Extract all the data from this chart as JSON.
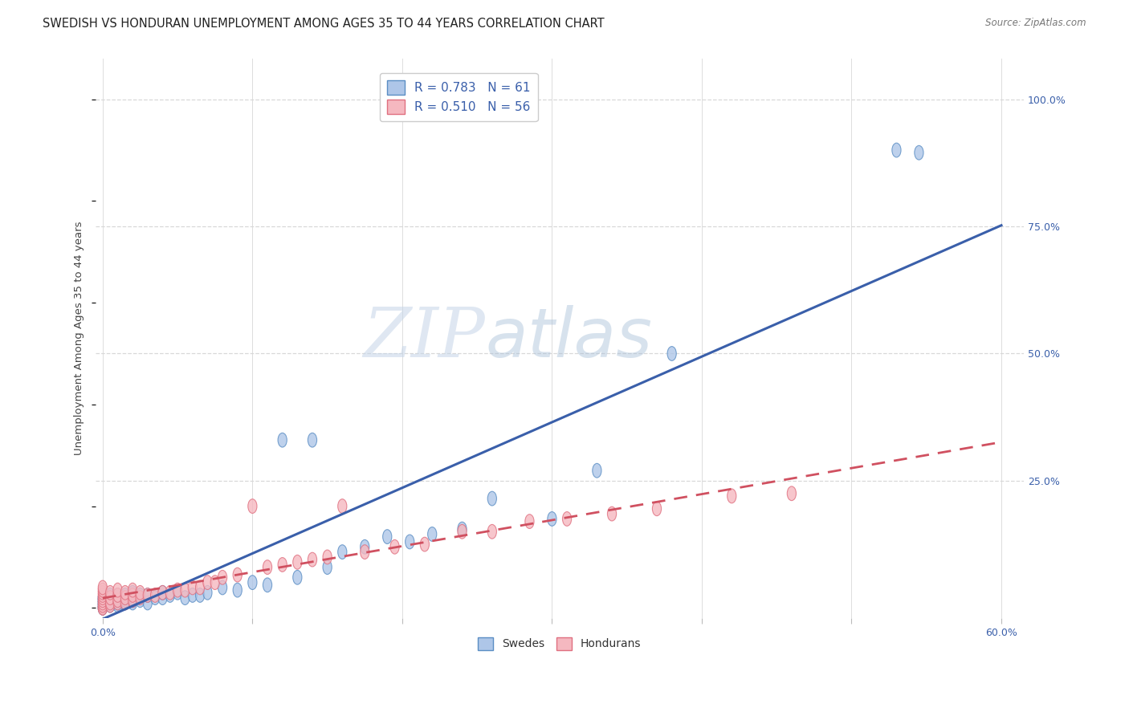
{
  "title": "SWEDISH VS HONDURAN UNEMPLOYMENT AMONG AGES 35 TO 44 YEARS CORRELATION CHART",
  "source": "Source: ZipAtlas.com",
  "ylabel": "Unemployment Among Ages 35 to 44 years",
  "xlim": [
    -0.005,
    0.615
  ],
  "ylim": [
    -0.02,
    1.08
  ],
  "xticks": [
    0.0,
    0.1,
    0.2,
    0.3,
    0.4,
    0.5,
    0.6
  ],
  "yticks_right": [
    0.25,
    0.5,
    0.75,
    1.0
  ],
  "yticklabels_right": [
    "25.0%",
    "50.0%",
    "75.0%",
    "100.0%"
  ],
  "swedes_R": 0.783,
  "swedes_N": 61,
  "hondurans_R": 0.51,
  "hondurans_N": 56,
  "blue_fill": "#aec6e8",
  "blue_edge": "#5b8ec4",
  "pink_fill": "#f5b8c0",
  "pink_edge": "#e07080",
  "blue_line_color": "#3a5faa",
  "pink_line_color": "#d05060",
  "swedes_x": [
    0.0,
    0.0,
    0.0,
    0.0,
    0.0,
    0.0,
    0.0,
    0.0,
    0.0,
    0.0,
    0.005,
    0.005,
    0.005,
    0.005,
    0.005,
    0.01,
    0.01,
    0.01,
    0.01,
    0.01,
    0.015,
    0.015,
    0.015,
    0.015,
    0.02,
    0.02,
    0.02,
    0.02,
    0.025,
    0.025,
    0.03,
    0.03,
    0.035,
    0.04,
    0.04,
    0.045,
    0.05,
    0.055,
    0.06,
    0.065,
    0.07,
    0.08,
    0.09,
    0.1,
    0.11,
    0.12,
    0.13,
    0.14,
    0.15,
    0.16,
    0.175,
    0.19,
    0.205,
    0.22,
    0.24,
    0.26,
    0.3,
    0.33,
    0.38,
    0.53,
    0.545
  ],
  "swedes_y": [
    0.0,
    0.0,
    0.005,
    0.005,
    0.01,
    0.01,
    0.015,
    0.015,
    0.02,
    0.02,
    0.005,
    0.01,
    0.015,
    0.02,
    0.025,
    0.005,
    0.01,
    0.015,
    0.02,
    0.025,
    0.01,
    0.015,
    0.02,
    0.025,
    0.01,
    0.015,
    0.02,
    0.03,
    0.015,
    0.025,
    0.01,
    0.025,
    0.02,
    0.02,
    0.03,
    0.025,
    0.03,
    0.02,
    0.025,
    0.025,
    0.03,
    0.04,
    0.035,
    0.05,
    0.045,
    0.33,
    0.06,
    0.33,
    0.08,
    0.11,
    0.12,
    0.14,
    0.13,
    0.145,
    0.155,
    0.215,
    0.175,
    0.27,
    0.5,
    0.9,
    0.895
  ],
  "hondurans_x": [
    0.0,
    0.0,
    0.0,
    0.0,
    0.0,
    0.0,
    0.0,
    0.0,
    0.0,
    0.0,
    0.005,
    0.005,
    0.005,
    0.005,
    0.01,
    0.01,
    0.01,
    0.01,
    0.015,
    0.015,
    0.015,
    0.02,
    0.02,
    0.02,
    0.025,
    0.025,
    0.03,
    0.035,
    0.04,
    0.045,
    0.05,
    0.055,
    0.06,
    0.065,
    0.07,
    0.075,
    0.08,
    0.09,
    0.1,
    0.11,
    0.12,
    0.13,
    0.14,
    0.15,
    0.16,
    0.175,
    0.195,
    0.215,
    0.24,
    0.26,
    0.285,
    0.31,
    0.34,
    0.37,
    0.42,
    0.46
  ],
  "hondurans_y": [
    0.0,
    0.0,
    0.005,
    0.01,
    0.015,
    0.02,
    0.025,
    0.03,
    0.035,
    0.04,
    0.005,
    0.01,
    0.02,
    0.03,
    0.01,
    0.015,
    0.025,
    0.035,
    0.01,
    0.02,
    0.03,
    0.015,
    0.025,
    0.035,
    0.02,
    0.03,
    0.025,
    0.025,
    0.03,
    0.03,
    0.035,
    0.035,
    0.04,
    0.04,
    0.05,
    0.05,
    0.06,
    0.065,
    0.2,
    0.08,
    0.085,
    0.09,
    0.095,
    0.1,
    0.2,
    0.11,
    0.12,
    0.125,
    0.15,
    0.15,
    0.17,
    0.175,
    0.185,
    0.195,
    0.22,
    0.225
  ],
  "watermark_zip": "ZIP",
  "watermark_atlas": "atlas",
  "background_color": "#ffffff",
  "grid_color": "#d8d8d8",
  "title_fontsize": 10.5,
  "source_fontsize": 8.5,
  "tick_fontsize": 9,
  "ylabel_fontsize": 9.5,
  "legend_fontsize": 11
}
